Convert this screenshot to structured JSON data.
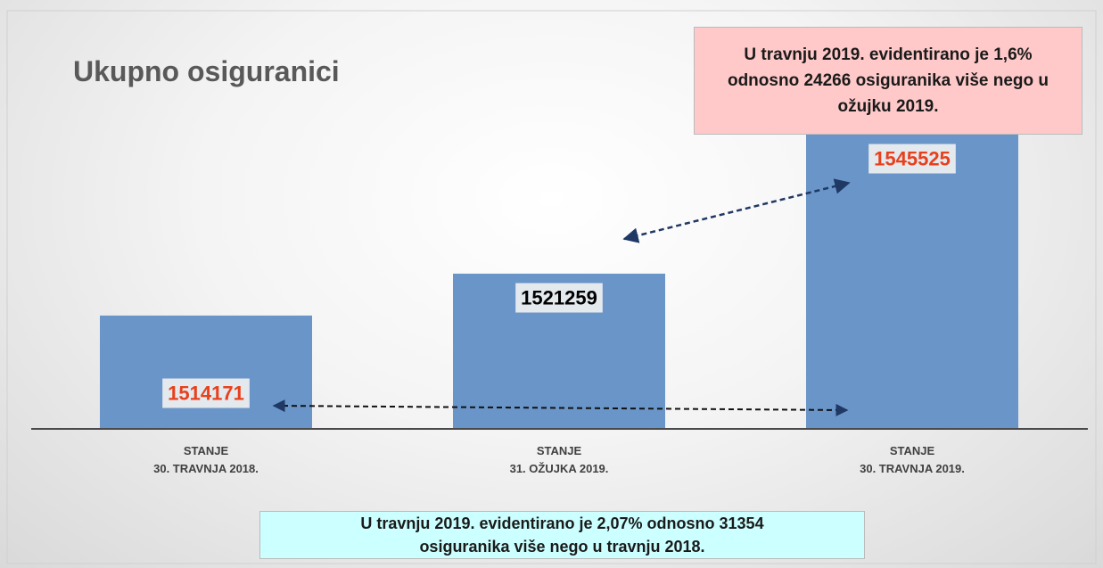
{
  "chart_data": {
    "type": "bar",
    "title": "Ukupno osiguranici",
    "categories": [
      "STANJE\n30. TRAVNJA 2018.",
      "STANJE\n31. OŽUJKA 2019.",
      "STANJE\n30. TRAVNJA 2019."
    ],
    "values": [
      1514171,
      1521259,
      1545525
    ],
    "color": "#6a95c8",
    "label_colors": [
      "#e8401c",
      "#000000",
      "#e8401c"
    ],
    "ylim": [
      1495000,
      1560000
    ],
    "annotations": [
      "U travnju 2019. evidentirano je 1,6% odnosno 24266 osiguranika više nego u ožujku 2019.",
      "U travnju 2019. evidentirano je 2,07%  odnosno 31354 osiguranika više nego u travnju 2018."
    ]
  }
}
